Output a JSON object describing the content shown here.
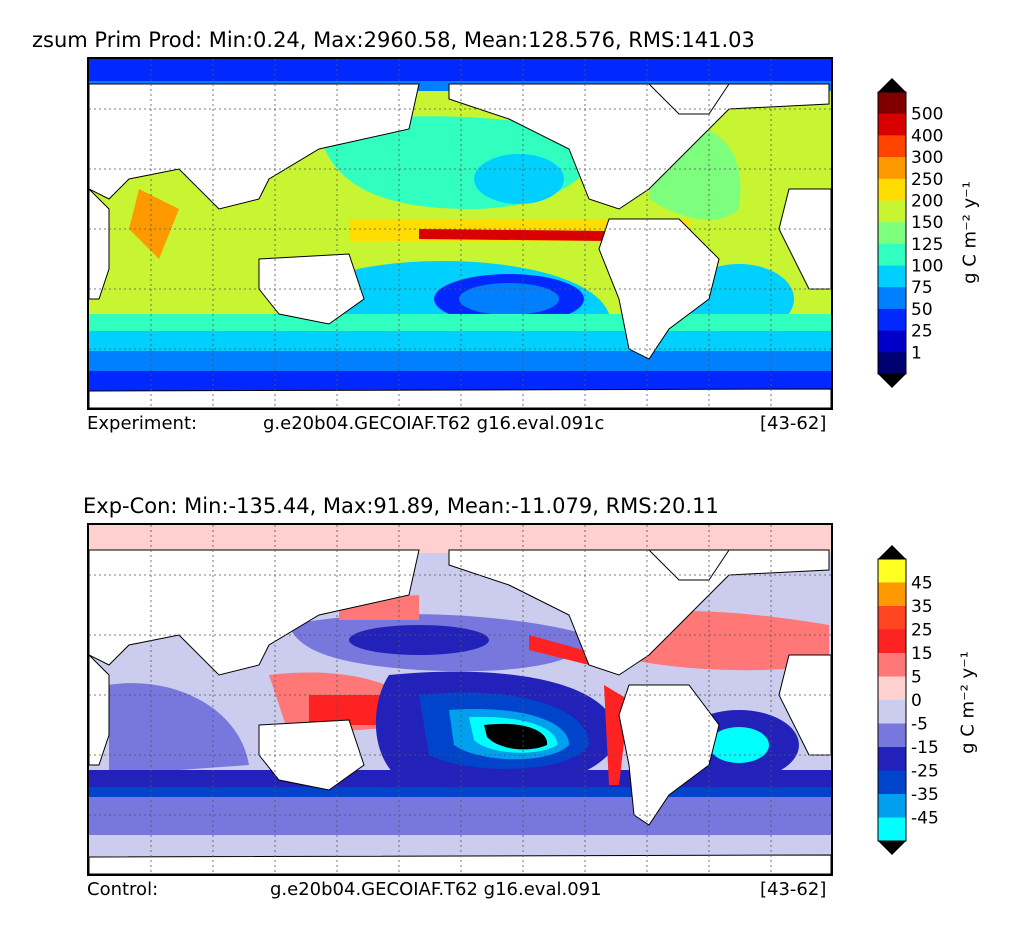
{
  "panels": [
    {
      "title": "zsum Prim Prod: Min:0.24, Max:2960.58, Mean:128.576, RMS:141.03",
      "footer": {
        "label": "Experiment:",
        "case": "g.e20b04.GECOIAF.T62 g16.eval.091c",
        "years": "[43-62]"
      },
      "colorbar": {
        "unit": "g C m⁻² y⁻¹",
        "tick_labels": [
          "500",
          "400",
          "300",
          "250",
          "200",
          "150",
          "125",
          "100",
          "75",
          "50",
          "25",
          "1"
        ],
        "colors": [
          "#800000",
          "#d80000",
          "#ff4400",
          "#ff9900",
          "#ffdd00",
          "#c8f532",
          "#7dff7d",
          "#30ffc0",
          "#00d0ff",
          "#0080ff",
          "#0028ff",
          "#0000c8",
          "#000070"
        ],
        "extend_top_color": "#000000",
        "extend_bottom_color": "#000000"
      }
    },
    {
      "title": "Exp-Con: Min:-135.44, Max:91.89, Mean:-11.079, RMS:20.11",
      "footer": {
        "label": "Control:",
        "case": "g.e20b04.GECOIAF.T62 g16.eval.091",
        "years": "[43-62]"
      },
      "colorbar": {
        "unit": "g C m⁻² y⁻¹",
        "tick_labels": [
          "45",
          "35",
          "25",
          "15",
          "5",
          "0",
          "-5",
          "-15",
          "-25",
          "-35",
          "-45"
        ],
        "colors": [
          "#ffff22",
          "#ff9900",
          "#ff4422",
          "#ff2222",
          "#ff7777",
          "#ffd0d0",
          "#ccccee",
          "#7777dd",
          "#2222bb",
          "#0044cc",
          "#00a0ee",
          "#00ffff"
        ],
        "extend_top_color": "#000000",
        "extend_bottom_color": "#000000"
      }
    }
  ]
}
